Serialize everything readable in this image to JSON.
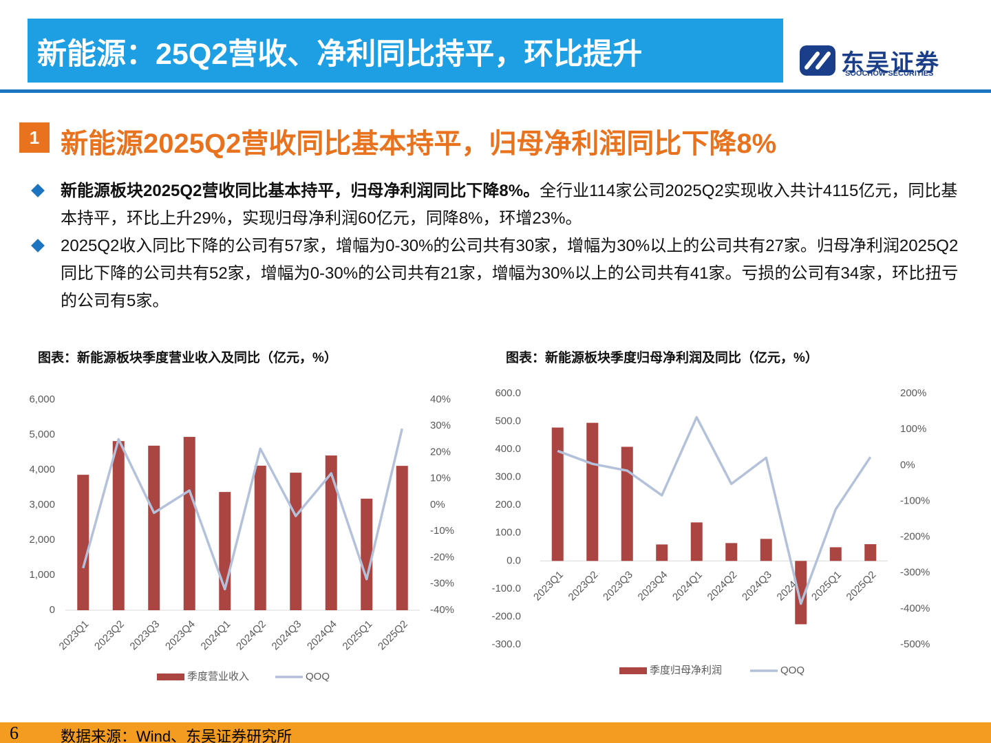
{
  "header": {
    "title": "新能源：25Q2营收、净利同比持平，环比提升",
    "logo": {
      "name": "东吴证券",
      "en": "SOOCHOW SECURITIES"
    }
  },
  "section": {
    "number": "1",
    "title": "新能源2025Q2营收同比基本持平，归母净利润同比下降8%"
  },
  "bullets": [
    {
      "bold": "新能源板块2025Q2营收同比基本持平，归母净利润同比下降8%。",
      "text": "全行业114家公司2025Q2实现收入共计4115亿元，同比基本持平，环比上升29%，实现归母净利润60亿元，同降8%，环增23%。"
    },
    {
      "text": "2025Q2收入同比下降的公司有57家，增幅为0-30%的公司共有30家，增幅为30%以上的公司共有27家。归母净利润2025Q2同比下降的公司共有52家，增幅为0-30%的公司共有21家，增幅为30%以上的公司共有41家。亏损的公司有34家，环比扭亏的公司有5家。"
    }
  ],
  "chart_data": [
    {
      "type": "bar",
      "title": "图表：新能源板块季度营业收入及同比（亿元，%）",
      "categories": [
        "2023Q1",
        "2023Q2",
        "2023Q3",
        "2023Q4",
        "2024Q1",
        "2024Q2",
        "2024Q3",
        "2024Q4",
        "2025Q1",
        "2025Q2"
      ],
      "series": [
        {
          "name": "季度营业收入",
          "type": "bar",
          "color": "#ab4542",
          "values": [
            3860,
            4820,
            4690,
            4940,
            3370,
            4120,
            3920,
            4410,
            3180,
            4115
          ]
        },
        {
          "name": "QOQ",
          "type": "line",
          "axis": "y2",
          "color": "#b4c1da",
          "values": [
            -24,
            25,
            -3,
            5.5,
            -32,
            21.4,
            -4.2,
            12,
            -28.2,
            29
          ]
        }
      ],
      "ylim": [
        0,
        6000
      ],
      "yticks": [
        0,
        {
          "value": 1000,
          "label": "1,000"
        },
        {
          "value": 2000,
          "label": "2,000"
        },
        {
          "value": 3000,
          "label": "3,000"
        },
        {
          "value": 4000,
          "label": "4,000"
        },
        {
          "value": 5000,
          "label": "5,000"
        },
        {
          "value": 6000,
          "label": "6,000"
        }
      ],
      "y2lim": [
        -40,
        40
      ],
      "y2ticks": [
        {
          "value": -40,
          "label": "-40%"
        },
        {
          "value": -30,
          "label": "-30%"
        },
        {
          "value": -20,
          "label": "-20%"
        },
        {
          "value": -10,
          "label": "-10%"
        },
        {
          "value": 0,
          "label": "0%"
        },
        {
          "value": 10,
          "label": "10%"
        },
        {
          "value": 20,
          "label": "20%"
        },
        {
          "value": 30,
          "label": "30%"
        },
        {
          "value": 40,
          "label": "40%"
        }
      ]
    },
    {
      "type": "bar",
      "title": "图表：新能源板块季度归母净利润及同比（亿元，%）",
      "categories": [
        "2023Q1",
        "2023Q2",
        "2023Q3",
        "2023Q4",
        "2024Q1",
        "2024Q2",
        "2024Q3",
        "2024Q4",
        "2025Q1",
        "2025Q2"
      ],
      "series": [
        {
          "name": "季度归母净利润",
          "type": "bar",
          "color": "#ab4542",
          "values": [
            478,
            495,
            409,
            59,
            138,
            64,
            79,
            -227,
            49,
            60
          ]
        },
        {
          "name": "QOQ",
          "type": "line",
          "axis": "y2",
          "color": "#b4c1da",
          "values": [
            40,
            4,
            -15,
            -84,
            134,
            -52,
            21,
            -386,
            -123,
            23
          ]
        }
      ],
      "ylim": [
        -300,
        600
      ],
      "yticks": [
        {
          "value": -300,
          "label": "-300.0"
        },
        {
          "value": -200,
          "label": "-200.0"
        },
        {
          "value": -100,
          "label": "-100.0"
        },
        {
          "value": 0,
          "label": "0.0"
        },
        {
          "value": 100,
          "label": "100.0"
        },
        {
          "value": 200,
          "label": "200.0"
        },
        {
          "value": 300,
          "label": "300.0"
        },
        {
          "value": 400,
          "label": "400.0"
        },
        {
          "value": 500,
          "label": "500.0"
        },
        {
          "value": 600,
          "label": "600.0"
        }
      ],
      "y2lim": [
        -500,
        200
      ],
      "y2ticks": [
        {
          "value": -500,
          "label": "-500%"
        },
        {
          "value": -400,
          "label": "-400%"
        },
        {
          "value": -300,
          "label": "-300%"
        },
        {
          "value": -200,
          "label": "-200%"
        },
        {
          "value": -100,
          "label": "-100%"
        },
        {
          "value": 0,
          "label": "0%"
        },
        {
          "value": 100,
          "label": "100%"
        },
        {
          "value": 200,
          "label": "200%"
        }
      ]
    }
  ],
  "footer": {
    "page": "6",
    "source": "数据来源：Wind、东吴证券研究所"
  }
}
